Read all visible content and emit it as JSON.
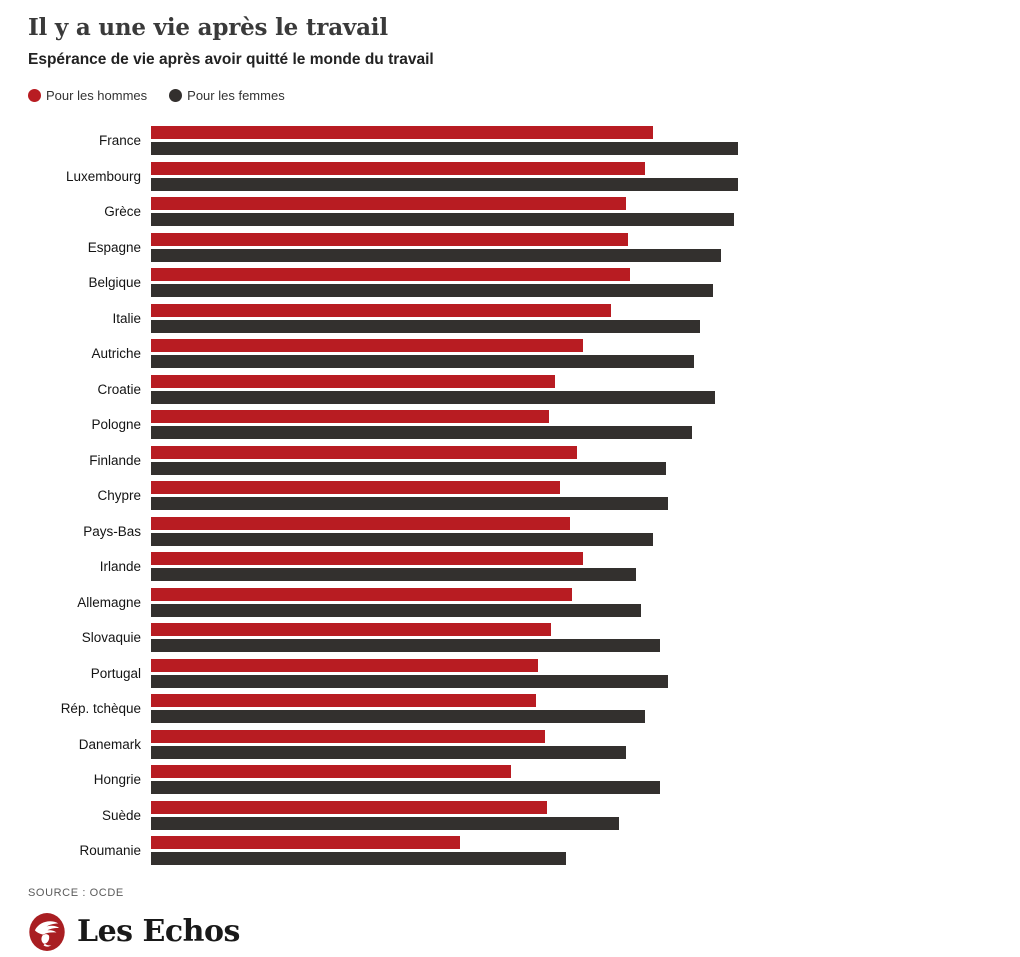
{
  "header": {
    "title": "Il y a une vie après le travail",
    "subtitle": "Espérance de vie après avoir quitté le monde du travail",
    "legend": [
      {
        "label": "Pour les hommes",
        "color": "#b81c22"
      },
      {
        "label": "Pour les femmes",
        "color": "#33302e"
      }
    ]
  },
  "chart_data": {
    "type": "bar",
    "orientation": "horizontal",
    "title": "Il y a une vie après le travail",
    "subtitle": "Espérance de vie après avoir quitté le monde du travail",
    "xlabel": "",
    "ylabel": "",
    "grid": false,
    "axis_labels_shown": false,
    "legend_position": "top",
    "unit": "années (estimées d'après la longueur des barres, aucun axe affiché)",
    "xlim": [
      0,
      28
    ],
    "categories": [
      "France",
      "Luxembourg",
      "Grèce",
      "Espagne",
      "Belgique",
      "Italie",
      "Autriche",
      "Croatie",
      "Pologne",
      "Finlande",
      "Chypre",
      "Pays-Bas",
      "Irlande",
      "Allemagne",
      "Slovaquie",
      "Portugal",
      "Rép. tchèque",
      "Danemark",
      "Hongrie",
      "Suède",
      "Roumanie"
    ],
    "series": [
      {
        "name": "Pour les hommes",
        "color": "#b81c22",
        "values": [
          23.6,
          23.2,
          22.3,
          22.4,
          22.5,
          21.6,
          20.3,
          19.0,
          18.7,
          20.0,
          19.2,
          19.7,
          20.3,
          19.8,
          18.8,
          18.2,
          18.1,
          18.5,
          16.9,
          18.6,
          14.5
        ]
      },
      {
        "name": "Pour les femmes",
        "color": "#33302e",
        "values": [
          27.6,
          27.6,
          27.4,
          26.8,
          26.4,
          25.8,
          25.5,
          26.5,
          25.4,
          24.2,
          24.3,
          23.6,
          22.8,
          23.0,
          23.9,
          24.3,
          23.2,
          22.3,
          23.9,
          22.0,
          19.5
        ]
      }
    ]
  },
  "footer": {
    "source": "SOURCE : OCDE",
    "brand": "Les Echos",
    "brand_icon": "les-echos-mercury-logo",
    "brand_color": "#a91e22"
  }
}
